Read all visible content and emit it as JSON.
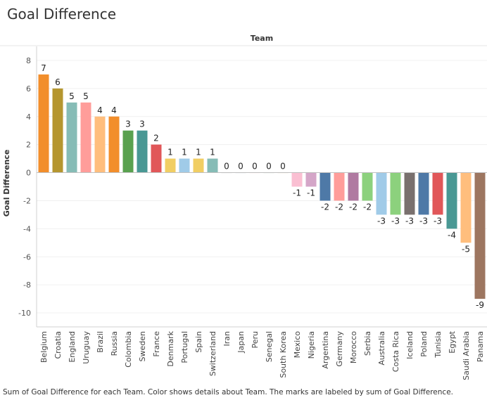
{
  "title": "Goal Difference",
  "caption": "Sum of Goal Difference for each Team.  Color shows details about Team.  The marks are labeled by sum of Goal Difference.",
  "chart_data": {
    "type": "bar",
    "column_header": "Team",
    "ylabel": "Goal Difference",
    "ylim": [
      -11,
      9
    ],
    "yticks": [
      8,
      6,
      4,
      2,
      0,
      -2,
      -4,
      -6,
      -8,
      -10
    ],
    "grid": true,
    "categories": [
      "Belgium",
      "Croatia",
      "England",
      "Uruguay",
      "Brazil",
      "Russia",
      "Colombia",
      "Sweden",
      "France",
      "Denmark",
      "Portugal",
      "Spain",
      "Switzerland",
      "Iran",
      "Japan",
      "Peru",
      "Senegal",
      "South Korea",
      "Mexico",
      "Nigeria",
      "Argentina",
      "Germany",
      "Morocco",
      "Serbia",
      "Australia",
      "Costa Rica",
      "Iceland",
      "Poland",
      "Tunisia",
      "Egypt",
      "Saudi Arabia",
      "Panama"
    ],
    "values": [
      7,
      6,
      5,
      5,
      4,
      4,
      3,
      3,
      2,
      1,
      1,
      1,
      1,
      0,
      0,
      0,
      0,
      0,
      -1,
      -1,
      -2,
      -2,
      -2,
      -2,
      -3,
      -3,
      -3,
      -3,
      -3,
      -4,
      -5,
      -9
    ],
    "colors": [
      "#f28e2b",
      "#b5962f",
      "#86bcb6",
      "#ff9d9a",
      "#ffbe7d",
      "#f28e2b",
      "#59a14f",
      "#499894",
      "#e15759",
      "#f1ce63",
      "#a0cbe8",
      "#f1ce63",
      "#86bcb6",
      "#79706e",
      "#4e79a7",
      "#ff9d9a",
      "#59a14f",
      "#b6992d",
      "#fabfd2",
      "#d4a6c8",
      "#4e79a7",
      "#ff9d9a",
      "#b07aa1",
      "#8cd17d",
      "#a0cbe8",
      "#8cd17d",
      "#79706e",
      "#4e79a7",
      "#e15759",
      "#499894",
      "#ffbe7d",
      "#9d7660"
    ]
  }
}
